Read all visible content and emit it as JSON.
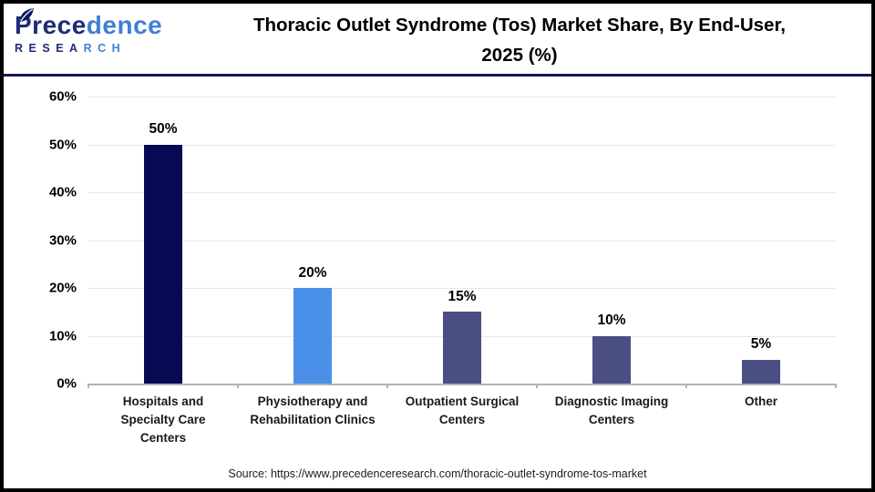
{
  "header": {
    "logo": {
      "brand_dark": "Prece",
      "brand_light": "dence",
      "sub_dark": "RESEA",
      "sub_light": "RCH"
    },
    "title_line1": "Thoracic Outlet Syndrome (Tos) Market Share, By End-User,",
    "title_line2": "2025 (%)"
  },
  "chart_data": {
    "type": "bar",
    "title": "Thoracic Outlet Syndrome (Tos) Market Share, By End-User, 2025 (%)",
    "categories": [
      "Hospitals and Specialty Care Centers",
      "Physiotherapy and Rehabilitation Clinics",
      "Outpatient Surgical Centers",
      "Diagnostic Imaging Centers",
      "Other"
    ],
    "category_lines": [
      [
        "Hospitals and",
        "Specialty Care",
        "Centers"
      ],
      [
        "Physiotherapy and",
        "Rehabilitation Clinics"
      ],
      [
        "Outpatient Surgical",
        "Centers"
      ],
      [
        "Diagnostic Imaging",
        "Centers"
      ],
      [
        "Other"
      ]
    ],
    "values": [
      50,
      20,
      15,
      10,
      5
    ],
    "value_labels": [
      "50%",
      "20%",
      "15%",
      "10%",
      "5%"
    ],
    "bar_colors": [
      "#050a52",
      "#4a90e8",
      "#4a4e82",
      "#4a4e82",
      "#4a4e82"
    ],
    "xlabel": "",
    "ylabel": "",
    "ylim": [
      0,
      60
    ],
    "ytick_step": 10,
    "ytick_labels": [
      "0%",
      "10%",
      "20%",
      "30%",
      "40%",
      "50%",
      "60%"
    ],
    "grid": true,
    "legend": false
  },
  "footer": {
    "source": "Source: https://www.precedenceresearch.com/thoracic-outlet-syndrome-tos-market"
  },
  "colors": {
    "brand_navy": "#1f2a7a",
    "brand_blue": "#3f7fd6",
    "header_rule": "#151b4e",
    "gridline": "#e8e8e8",
    "axis": "#b3b3b3"
  }
}
